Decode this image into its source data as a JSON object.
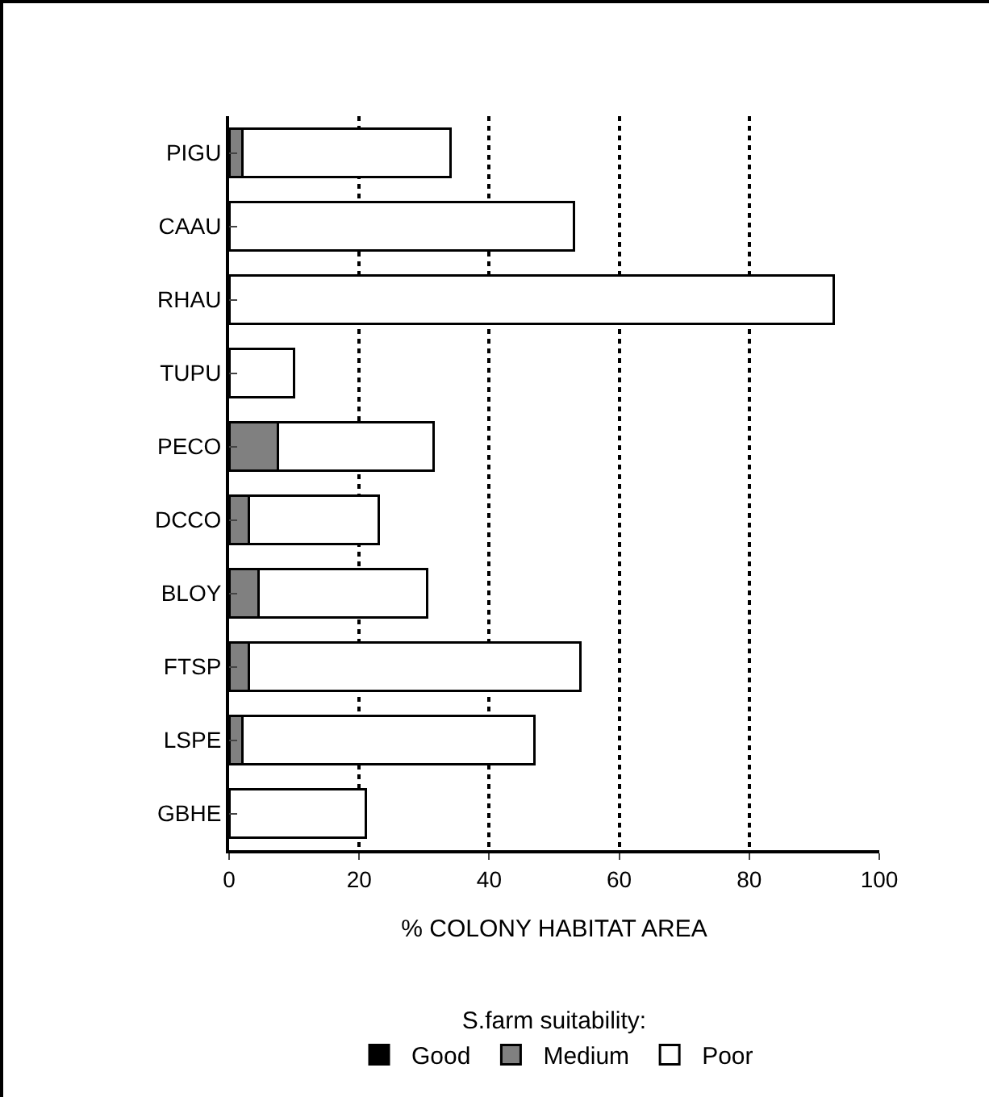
{
  "chart_data": {
    "type": "bar",
    "orientation": "horizontal",
    "stacked": true,
    "categories": [
      "PIGU",
      "CAAU",
      "RHAU",
      "TUPU",
      "PECO",
      "DCCO",
      "BLOY",
      "FTSP",
      "LSPE",
      "GBHE"
    ],
    "series": [
      {
        "name": "Good",
        "color": "#000000",
        "values": [
          0,
          0,
          0,
          0,
          0,
          0,
          0,
          0,
          0,
          0
        ]
      },
      {
        "name": "Medium",
        "color": "#808080",
        "values": [
          2,
          0,
          0,
          0,
          7.5,
          3,
          4.5,
          3,
          2,
          0
        ]
      },
      {
        "name": "Poor",
        "color": "#ffffff",
        "values": [
          32,
          53,
          93,
          10,
          24,
          20,
          26,
          51,
          45,
          21
        ]
      }
    ],
    "xlabel": "% COLONY HABITAT AREA",
    "xlim": [
      0,
      100
    ],
    "xticks": [
      0,
      20,
      40,
      60,
      80,
      100
    ],
    "grid": "x",
    "legend": "bottom",
    "legend_title": "S.farm suitability:"
  }
}
